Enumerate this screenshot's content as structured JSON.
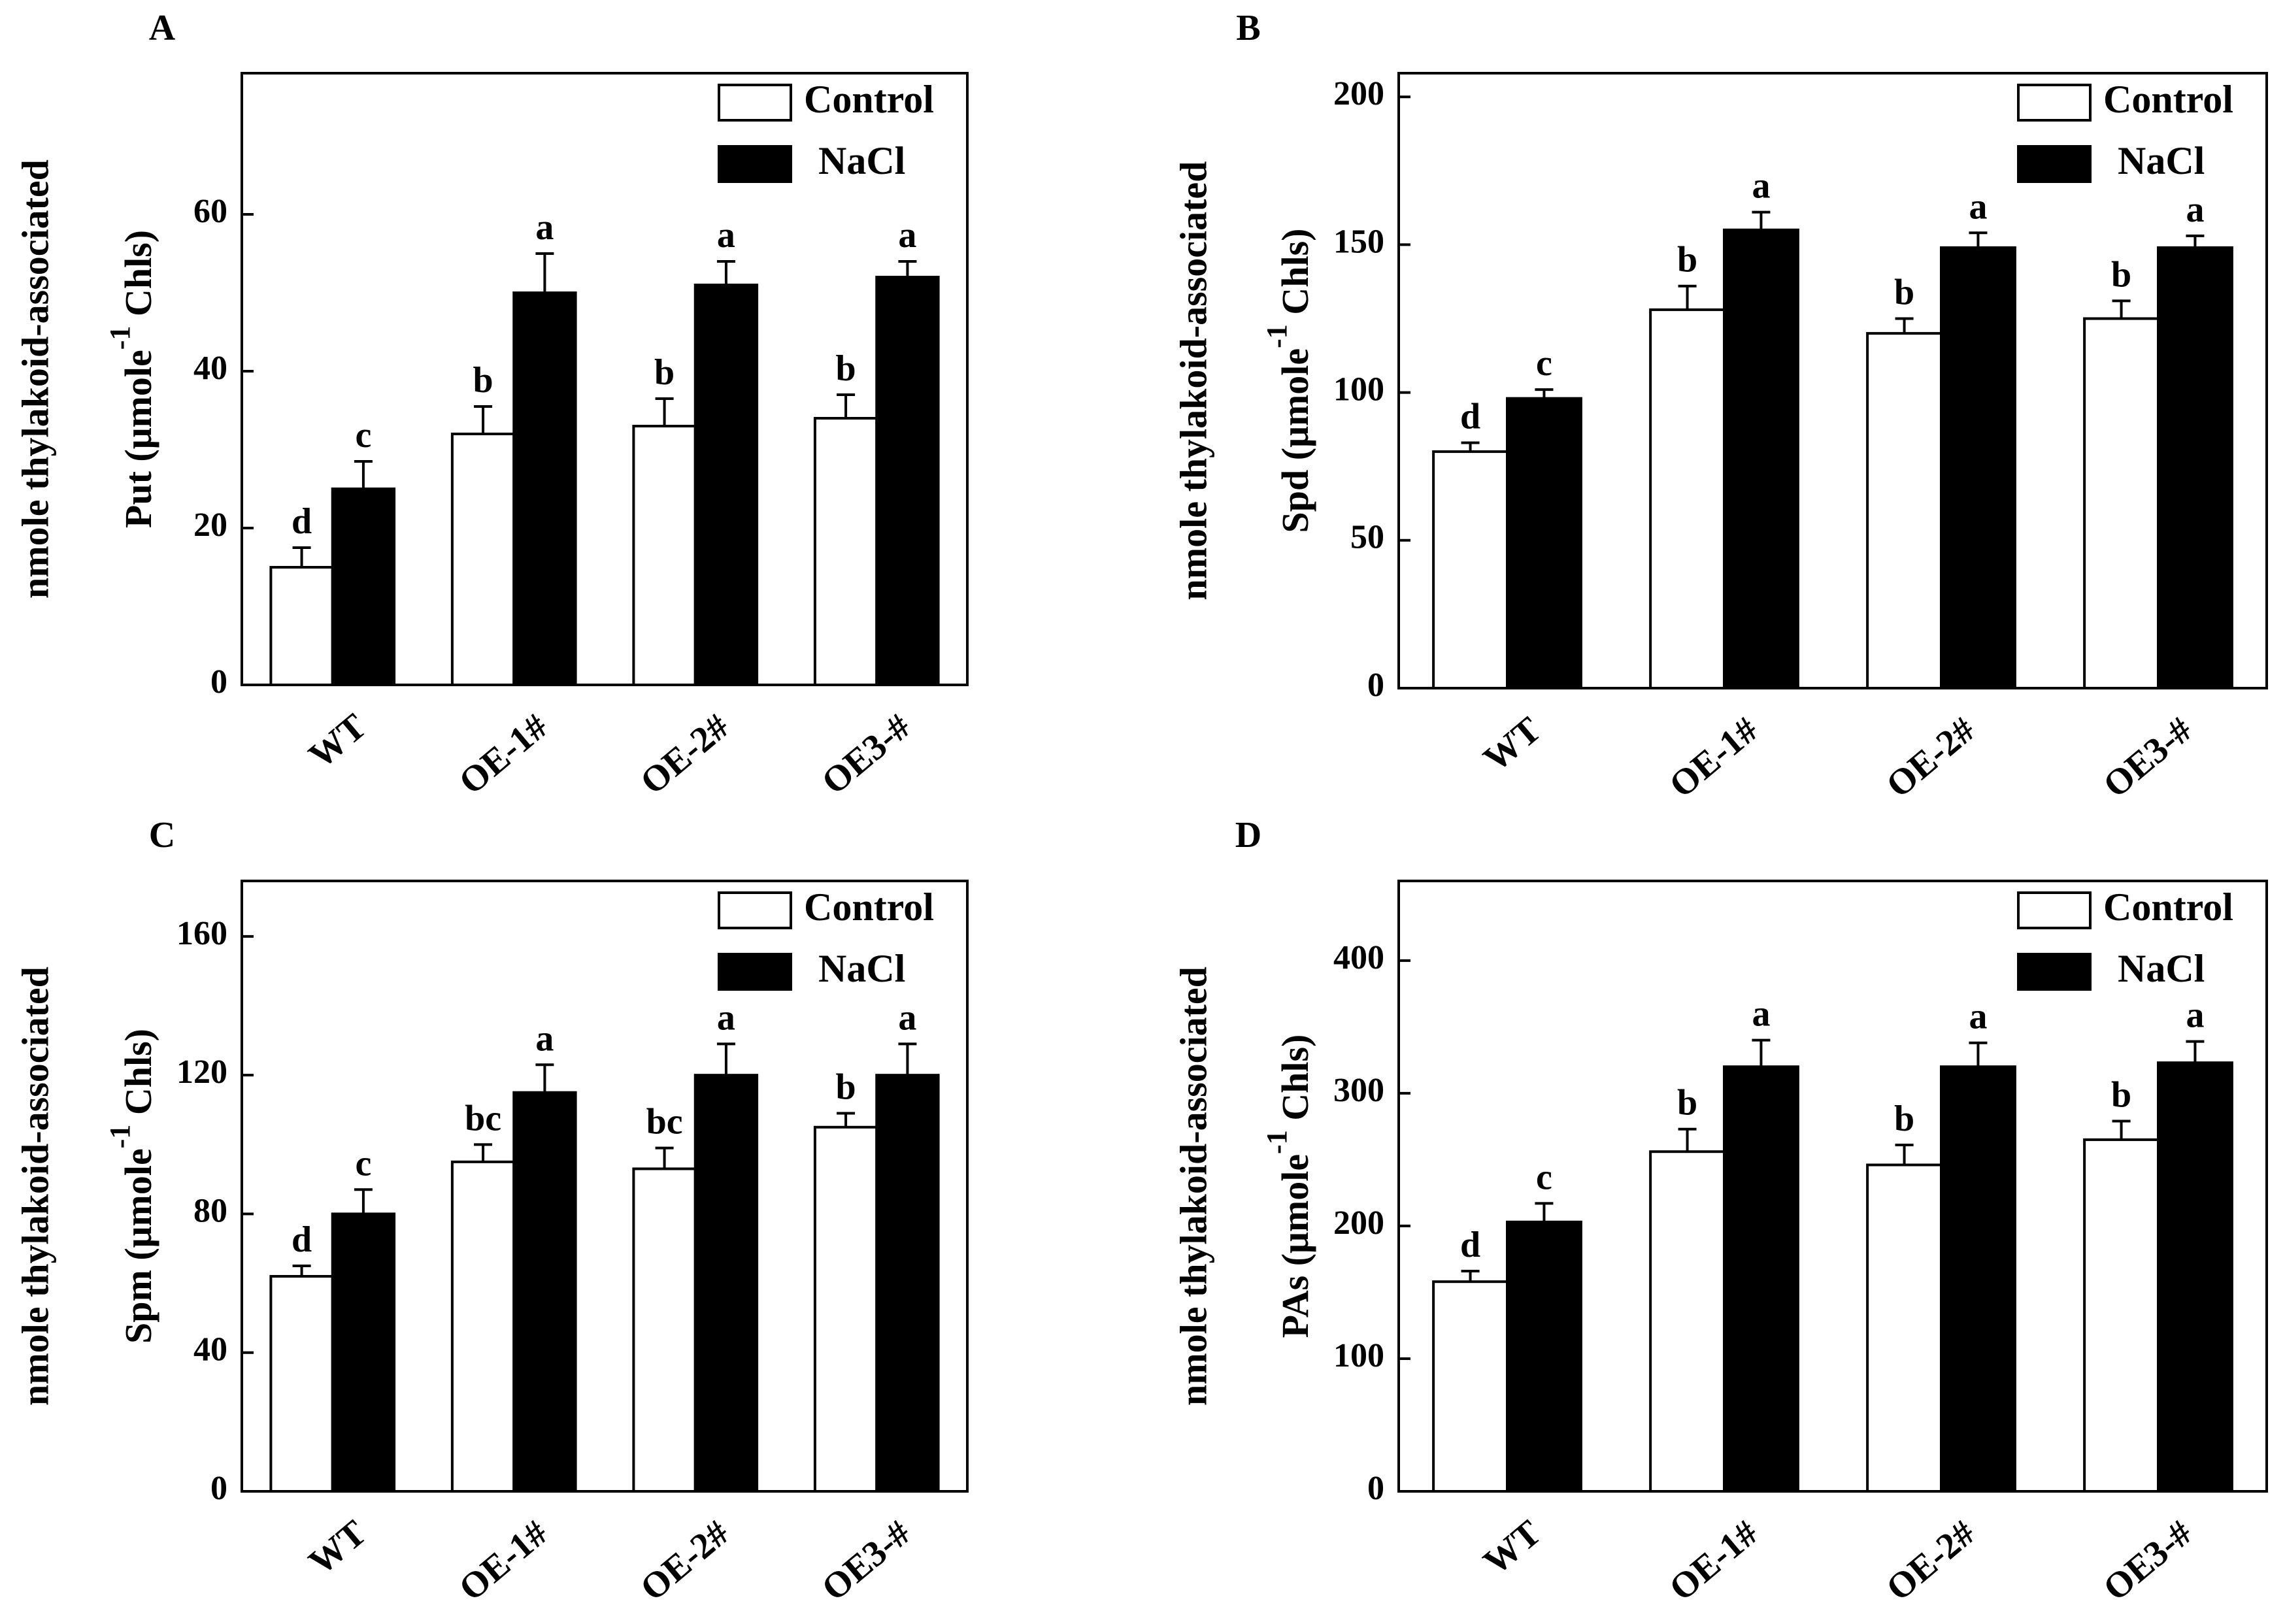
{
  "figure": {
    "panels": [
      "A",
      "B",
      "C",
      "D"
    ]
  },
  "chart_data": [
    {
      "panel": "A",
      "type": "bar",
      "ylabel_line1": "nmole thylakoid-associated",
      "ylabel_line2_prefix": "Put (μmole",
      "ylabel_superscript": "-1",
      "ylabel_line2_suffix": " Chls)",
      "categories": [
        "WT",
        "OE-1#",
        "OE-2#",
        "OE3-#"
      ],
      "ylim": [
        0,
        78
      ],
      "yticks": [
        0,
        20,
        40,
        60
      ],
      "legend_position": "top-right",
      "series": [
        {
          "name": "Control",
          "color": "#ffffff",
          "values": [
            15,
            32,
            33,
            34
          ],
          "errors": [
            2.5,
            3.5,
            3.5,
            3
          ],
          "letters": [
            "d",
            "b",
            "b",
            "b"
          ]
        },
        {
          "name": "NaCl",
          "color": "#000000",
          "values": [
            25,
            50,
            51,
            52
          ],
          "errors": [
            3.5,
            5,
            3,
            2
          ],
          "letters": [
            "c",
            "a",
            "a",
            "a"
          ]
        }
      ]
    },
    {
      "panel": "B",
      "type": "bar",
      "ylabel_line1": "nmole thylakoid-associated",
      "ylabel_line2_prefix": "Spd (μmole",
      "ylabel_superscript": "-1",
      "ylabel_line2_suffix": " Chls)",
      "categories": [
        "WT",
        "OE-1#",
        "OE-2#",
        "OE3-#"
      ],
      "ylim": [
        0,
        208
      ],
      "yticks": [
        0,
        50,
        100,
        150,
        200
      ],
      "legend_position": "top-right",
      "series": [
        {
          "name": "Control",
          "color": "#ffffff",
          "values": [
            80,
            128,
            120,
            125
          ],
          "errors": [
            3,
            8,
            5,
            6
          ],
          "letters": [
            "d",
            "b",
            "b",
            "b"
          ]
        },
        {
          "name": "NaCl",
          "color": "#000000",
          "values": [
            98,
            155,
            149,
            149
          ],
          "errors": [
            3,
            6,
            5,
            4
          ],
          "letters": [
            "c",
            "a",
            "a",
            "a"
          ]
        }
      ]
    },
    {
      "panel": "C",
      "type": "bar",
      "ylabel_line1": "nmole thylakoid-associated",
      "ylabel_line2_prefix": "Spm (μmole",
      "ylabel_superscript": "-1",
      "ylabel_line2_suffix": " Chls)",
      "categories": [
        "WT",
        "OE-1#",
        "OE-2#",
        "OE3-#"
      ],
      "ylim": [
        0,
        176
      ],
      "yticks": [
        0,
        40,
        80,
        120,
        160
      ],
      "legend_position": "top-right",
      "series": [
        {
          "name": "Control",
          "color": "#ffffff",
          "values": [
            62,
            95,
            93,
            105
          ],
          "errors": [
            3,
            5,
            6,
            4
          ],
          "letters": [
            "d",
            "bc",
            "bc",
            "b"
          ]
        },
        {
          "name": "NaCl",
          "color": "#000000",
          "values": [
            80,
            115,
            120,
            120
          ],
          "errors": [
            7,
            8,
            9,
            9
          ],
          "letters": [
            "c",
            "a",
            "a",
            "a"
          ]
        }
      ]
    },
    {
      "panel": "D",
      "type": "bar",
      "ylabel_line1": "nmole thylakoid-associated",
      "ylabel_line2_prefix": "PAs (μmole",
      "ylabel_superscript": "-1",
      "ylabel_line2_suffix": " Chls)",
      "categories": [
        "WT",
        "OE-1#",
        "OE-2#",
        "OE3-#"
      ],
      "ylim": [
        0,
        460
      ],
      "yticks": [
        0,
        100,
        200,
        300,
        400
      ],
      "legend_position": "top-right",
      "series": [
        {
          "name": "Control",
          "color": "#ffffff",
          "values": [
            158,
            256,
            246,
            265
          ],
          "errors": [
            8,
            17,
            15,
            14
          ],
          "letters": [
            "d",
            "b",
            "b",
            "b"
          ]
        },
        {
          "name": "NaCl",
          "color": "#000000",
          "values": [
            203,
            320,
            320,
            323
          ],
          "errors": [
            14,
            20,
            18,
            16
          ],
          "letters": [
            "c",
            "a",
            "a",
            "a"
          ]
        }
      ]
    }
  ]
}
